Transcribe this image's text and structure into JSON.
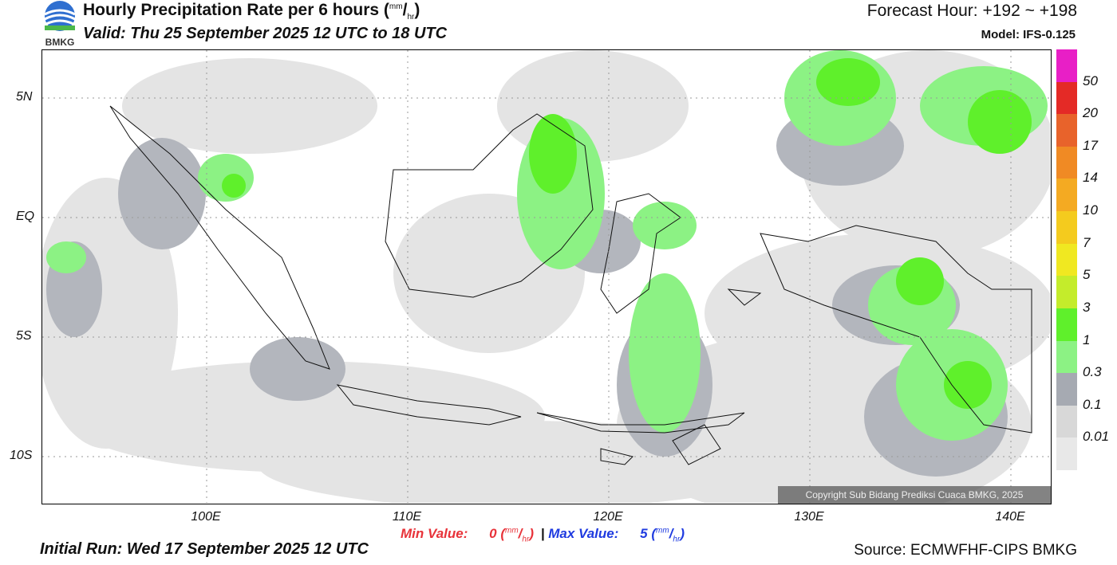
{
  "header": {
    "title": "Hourly Precipitation Rate per 6 hours",
    "title_unit_num": "mm",
    "title_unit_den": "hr",
    "valid": "Valid: Thu 25 September 2025 12 UTC to 18 UTC",
    "forecast_hour": "Forecast Hour: +192 ~ +198",
    "model": "Model: IFS-0.125",
    "logo_text": "BMKG"
  },
  "map": {
    "lat_labels": [
      "5N",
      "EQ",
      "5S",
      "10S"
    ],
    "lon_labels": [
      "100E",
      "110E",
      "120E",
      "130E",
      "140E"
    ],
    "copyright": "Copyright Sub Bidang Prediksi Cuaca BMKG, 2025"
  },
  "colorbar": {
    "labels": [
      "50",
      "20",
      "17",
      "14",
      "10",
      "7",
      "5",
      "3",
      "1",
      "0.3",
      "0.1",
      "0.01"
    ],
    "colors": [
      "#e81fc6",
      "#e42a26",
      "#e8632b",
      "#f08a24",
      "#f4aa22",
      "#f4cb1e",
      "#f0e821",
      "#c4ec2b",
      "#5ff02b",
      "#8cf284",
      "#a6aab2",
      "#d8d8d8",
      "#e8e8e8"
    ]
  },
  "stats": {
    "min_label": "Min Value:",
    "min_value": "0",
    "max_label": "Max Value:",
    "max_value": "5",
    "separator": "|",
    "unit_num": "mm",
    "unit_den": "hr"
  },
  "footer": {
    "initial_run": "Initial Run: Wed 17 September 2025 12 UTC",
    "source": "Source: ECMWFHF-CIPS BMKG"
  }
}
